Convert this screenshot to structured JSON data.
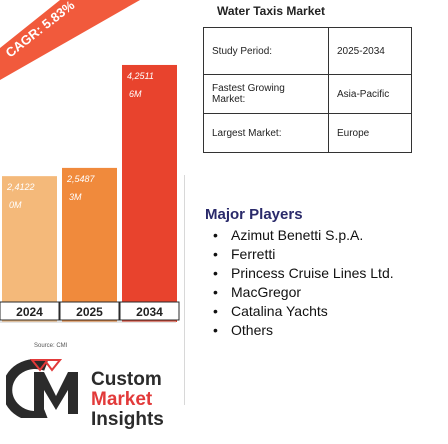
{
  "title": "Water Taxis Market",
  "cagr_label": "CAGR: 5.83%",
  "chart_data": {
    "type": "bar",
    "title": "Water Taxis Market",
    "categories": [
      "2024",
      "2025",
      "2034"
    ],
    "values": [
      2.4122,
      2.5487,
      4.2511
    ],
    "value_labels": [
      "2,4122",
      "2,5487",
      "4,2511"
    ],
    "unit_labels": [
      "0M",
      "3M",
      "6M"
    ],
    "colors": [
      "#f4b97a",
      "#f08a3c",
      "#e8432d"
    ]
  },
  "source": "Source: CMI",
  "table": [
    {
      "key": "Study Period:",
      "value": "2025-2034"
    },
    {
      "key": "Fastest Growing Market:",
      "value": "Asia-Pacific"
    },
    {
      "key": "Largest Market:",
      "value": "Europe"
    }
  ],
  "players_heading": "Major Players",
  "players": [
    "Azimut Benetti S.p.A.",
    "Ferretti",
    "Princess Cruise Lines Ltd.",
    "MacGregor",
    "Catalina Yachts",
    "Others"
  ],
  "logo": {
    "line1": "Custom",
    "line2": "Market",
    "line3": "Insights",
    "colors": {
      "dark": "#2b2b2b",
      "red": "#e23a3a"
    }
  }
}
